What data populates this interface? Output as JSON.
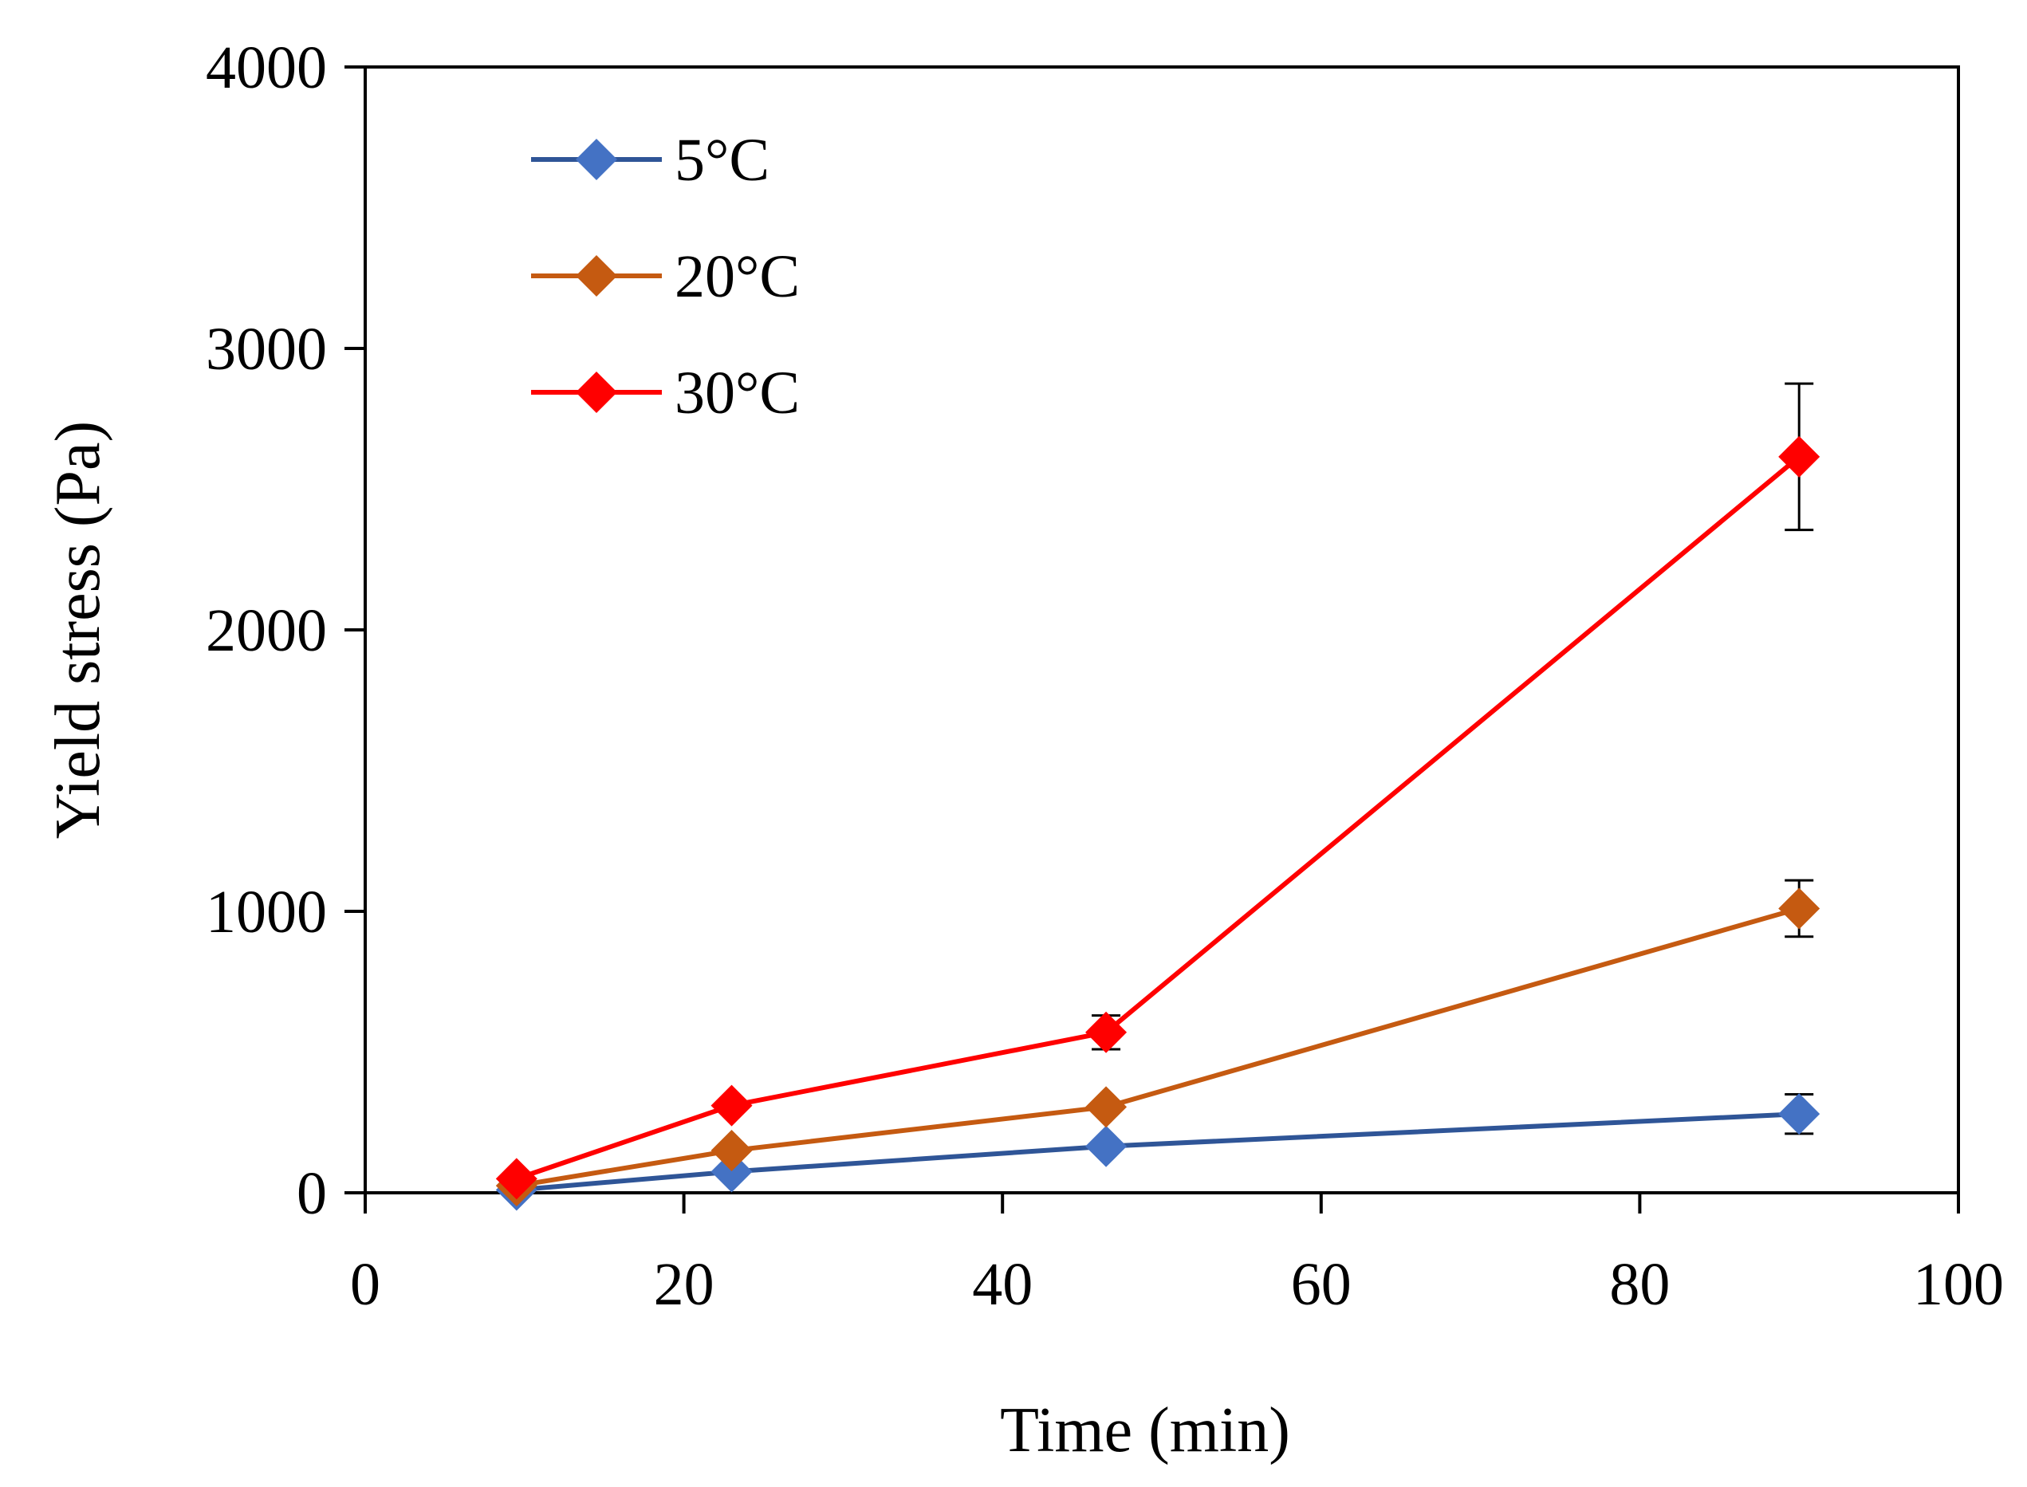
{
  "chart_data": {
    "type": "line",
    "title": "",
    "xlabel": "Time (min)",
    "ylabel": "Yield stress (Pa)",
    "xlim": [
      0,
      100
    ],
    "ylim": [
      0,
      4000
    ],
    "xticks": [
      "0",
      "20",
      "40",
      "60",
      "80",
      "100"
    ],
    "yticks": [
      "0",
      "1000",
      "2000",
      "3000",
      "4000"
    ],
    "grid": false,
    "legend_position": "top-left",
    "series": [
      {
        "name": "5°C",
        "color": "#2F5597",
        "marker_color": "#4472C4",
        "x": [
          9.5,
          23,
          46.5,
          90
        ],
        "values": [
          10,
          75,
          165,
          280
        ],
        "errors": [
          0,
          0,
          0,
          70
        ]
      },
      {
        "name": "20°C",
        "color": "#C55A11",
        "marker_color": "#C55A11",
        "x": [
          9.5,
          23,
          46.5,
          90
        ],
        "values": [
          25,
          150,
          305,
          1010
        ],
        "errors": [
          0,
          0,
          0,
          100
        ]
      },
      {
        "name": "30°C",
        "color": "#FF0000",
        "marker_color": "#FF0000",
        "x": [
          9.5,
          23,
          46.5,
          90
        ],
        "values": [
          50,
          310,
          570,
          2615
        ],
        "errors": [
          0,
          0,
          60,
          260
        ]
      }
    ]
  }
}
